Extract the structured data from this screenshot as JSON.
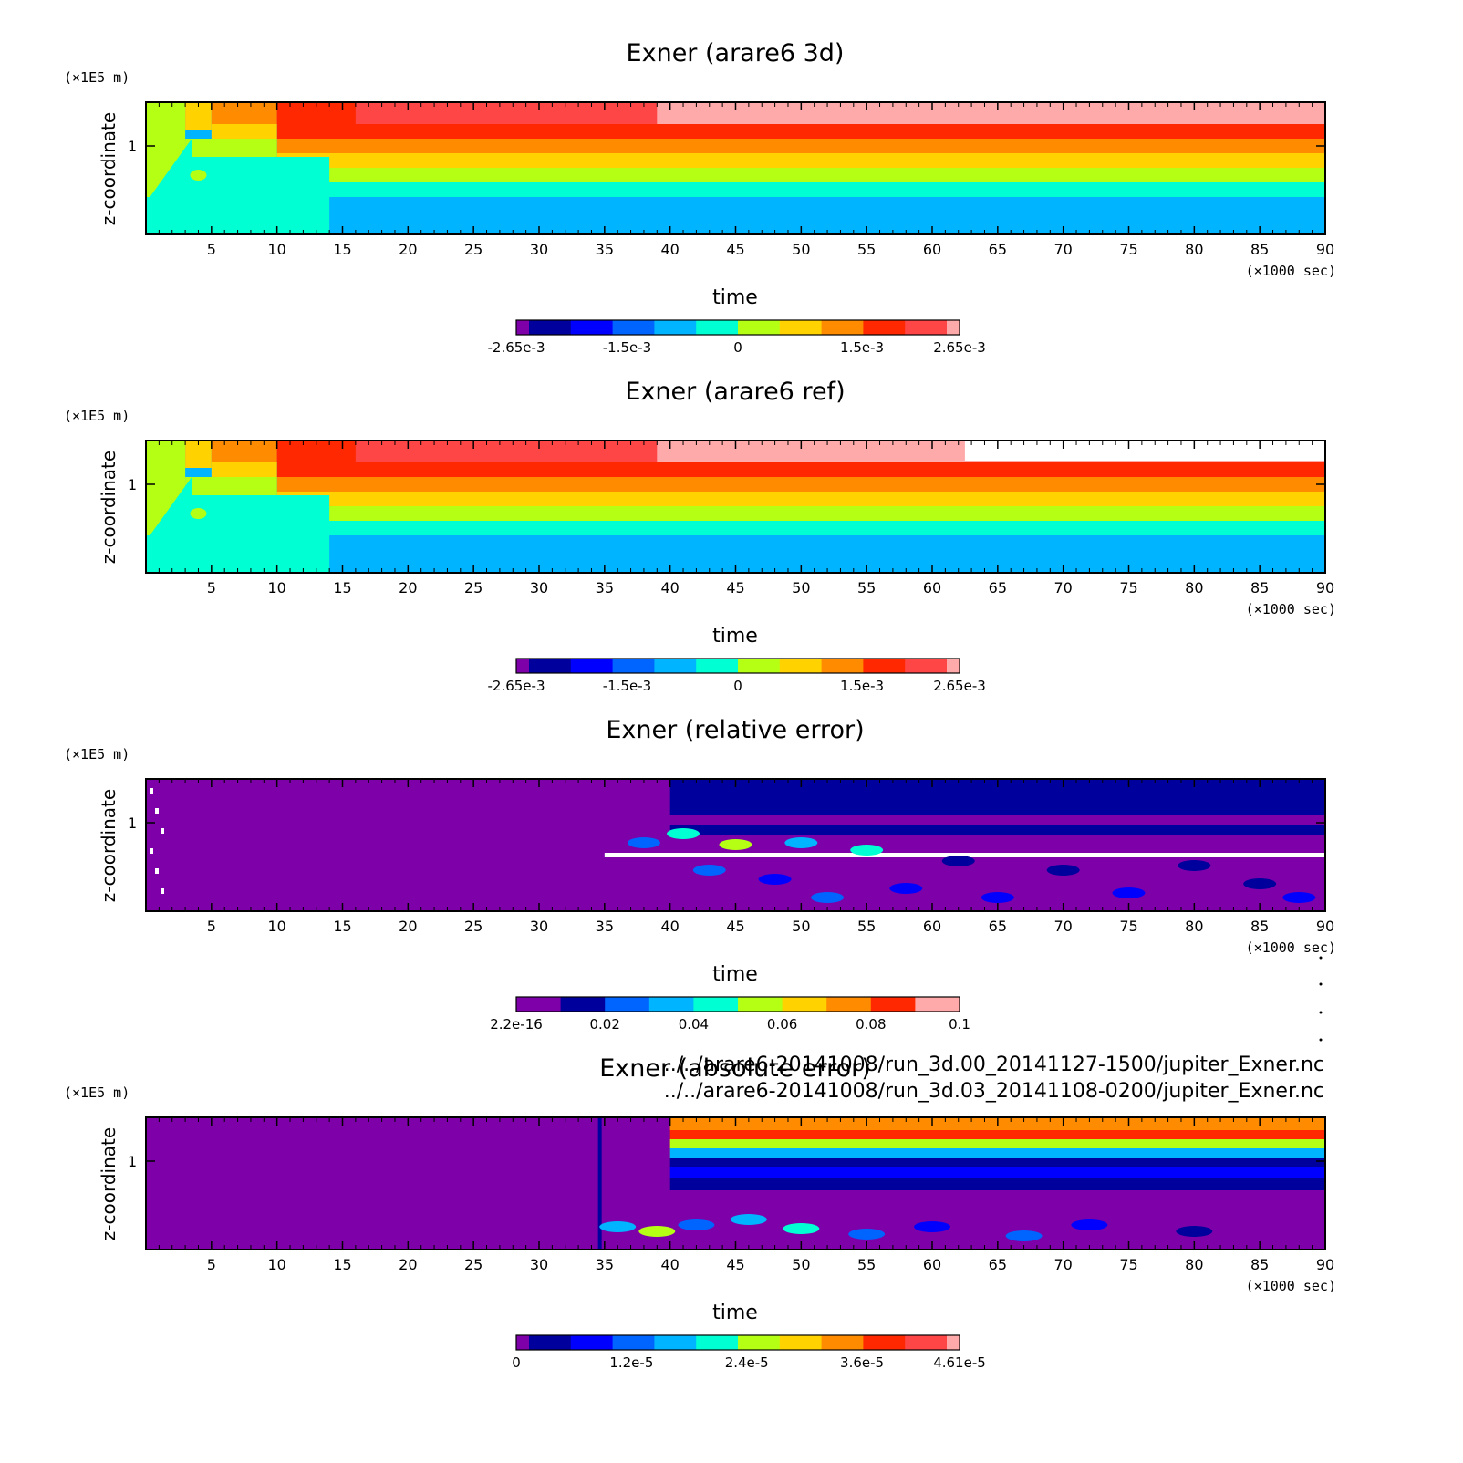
{
  "colors": {
    "rainbow": [
      "#7d00a8",
      "#00009c",
      "#0000ff",
      "#0064ff",
      "#00b4ff",
      "#00ffd2",
      "#b4ff14",
      "#ffd200",
      "#ff8c00",
      "#ff2800",
      "#ff4646",
      "#ffaaaa"
    ],
    "white": "#ffffff"
  },
  "files": {
    "line1": "../../arare6-20141008/run_3d.00_20141127-1500/jupiter_Exner.nc",
    "line2": "../../arare6-20141008/run_3d.03_20141108-0200/jupiter_Exner.nc"
  },
  "chart_data": [
    {
      "type": "heatmap",
      "title": "Exner (arare6 3d)",
      "xlabel": "time",
      "xunit": "(×1000 sec)",
      "ylabel": "z-coordinate",
      "yunit": "(×1E5 m)",
      "xlim": [
        0,
        90
      ],
      "xticks": [
        "5",
        "10",
        "15",
        "20",
        "25",
        "30",
        "35",
        "40",
        "45",
        "50",
        "55",
        "60",
        "65",
        "70",
        "75",
        "80",
        "85",
        "90"
      ],
      "ylim": [
        0,
        1.3
      ],
      "yticks": [
        "1"
      ],
      "colorbar": {
        "range": [
          -0.00265,
          0.00265
        ],
        "labels": [
          "-2.65e-3",
          "-1.5e-3",
          "0",
          "1.5e-3",
          "2.65e-3"
        ]
      }
    },
    {
      "type": "heatmap",
      "title": "Exner (arare6 ref)",
      "xlabel": "time",
      "xunit": "(×1000 sec)",
      "ylabel": "z-coordinate",
      "yunit": "(×1E5 m)",
      "xlim": [
        0,
        90
      ],
      "xticks": [
        "5",
        "10",
        "15",
        "20",
        "25",
        "30",
        "35",
        "40",
        "45",
        "50",
        "55",
        "60",
        "65",
        "70",
        "75",
        "80",
        "85",
        "90"
      ],
      "ylim": [
        0,
        1.3
      ],
      "yticks": [
        "1"
      ],
      "colorbar": {
        "range": [
          -0.00265,
          0.00265
        ],
        "labels": [
          "-2.65e-3",
          "-1.5e-3",
          "0",
          "1.5e-3",
          "2.65e-3"
        ]
      }
    },
    {
      "type": "heatmap",
      "title": "Exner (relative error)",
      "xlabel": "time",
      "xunit": "(×1000 sec)",
      "ylabel": "z-coordinate",
      "yunit": "(×1E5 m)",
      "xlim": [
        0,
        90
      ],
      "xticks": [
        "5",
        "10",
        "15",
        "20",
        "25",
        "30",
        "35",
        "40",
        "45",
        "50",
        "55",
        "60",
        "65",
        "70",
        "75",
        "80",
        "85",
        "90"
      ],
      "ylim": [
        0,
        1.3
      ],
      "yticks": [
        "1"
      ],
      "colorbar": {
        "range": [
          2.2e-16,
          0.1
        ],
        "labels": [
          "2.2e-16",
          "0.02",
          "0.04",
          "0.06",
          "0.08",
          "0.1"
        ]
      }
    },
    {
      "type": "heatmap",
      "title": "Exner (absolute error)",
      "xlabel": "time",
      "xunit": "(×1000 sec)",
      "ylabel": "z-coordinate",
      "yunit": "(×1E5 m)",
      "xlim": [
        0,
        90
      ],
      "xticks": [
        "5",
        "10",
        "15",
        "20",
        "25",
        "30",
        "35",
        "40",
        "45",
        "50",
        "55",
        "60",
        "65",
        "70",
        "75",
        "80",
        "85",
        "90"
      ],
      "ylim": [
        0,
        1.3
      ],
      "yticks": [
        "1"
      ],
      "colorbar": {
        "range": [
          0,
          4.61e-05
        ],
        "labels": [
          "0",
          "1.2e-5",
          "2.4e-5",
          "3.6e-5",
          "4.61e-5"
        ]
      }
    }
  ]
}
